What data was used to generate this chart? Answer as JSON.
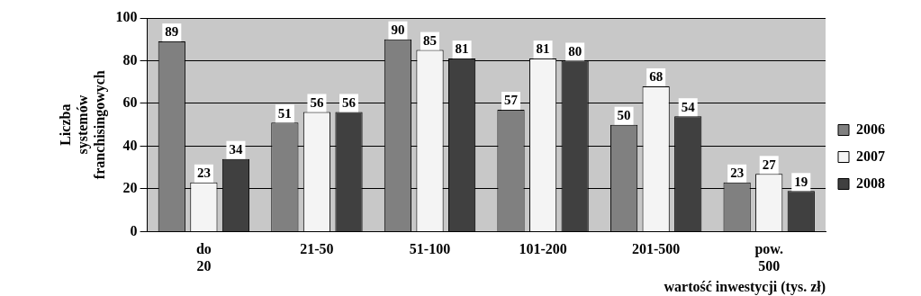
{
  "chart_data": {
    "type": "bar",
    "categories": [
      "do 20",
      "21-50",
      "51-100",
      "101-200",
      "201-500",
      "pow. 500"
    ],
    "series": [
      {
        "name": "2006",
        "color": "#808080",
        "values": [
          89,
          51,
          90,
          57,
          50,
          23
        ]
      },
      {
        "name": "2007",
        "color": "#f4f4f4",
        "values": [
          23,
          56,
          85,
          81,
          68,
          27
        ]
      },
      {
        "name": "2008",
        "color": "#404040",
        "values": [
          34,
          56,
          81,
          80,
          54,
          19
        ]
      }
    ],
    "ylim": [
      0,
      100
    ],
    "yticks": [
      0,
      20,
      40,
      60,
      80,
      100
    ],
    "grid": "y",
    "legend": "right",
    "data_labels": true,
    "ylabel": "Liczba systemów franchisingowych",
    "xlabel": "wartość inwestycji (tys. zł)"
  }
}
